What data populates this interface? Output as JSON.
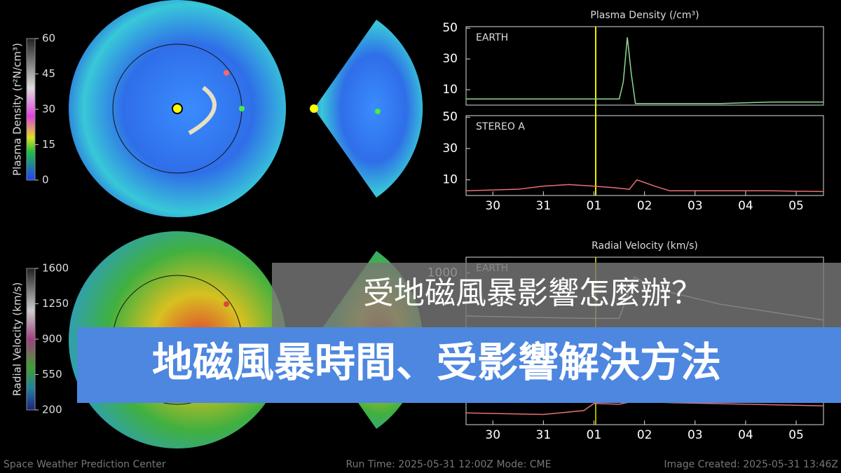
{
  "colorbars": [
    {
      "label": "Plasma Density (r²N/cm³)",
      "ticks": [
        60,
        45,
        30,
        15,
        0
      ]
    },
    {
      "label": "Radial Velocity (km/s)",
      "ticks": [
        1600,
        1250,
        900,
        550,
        200
      ]
    }
  ],
  "chart_data": [
    {
      "type": "line",
      "title": "Plasma Density (/cm³)",
      "x": [
        -0.53,
        0.5,
        1.5,
        2.5,
        2.58,
        2.66,
        2.74,
        2.82,
        3.5,
        4.5,
        5.5,
        6.54
      ],
      "series": [
        {
          "name": "EARTH",
          "color": "#8fd88f",
          "values": [
            4,
            4,
            4,
            4,
            15,
            44,
            20,
            1,
            1,
            1,
            2,
            2
          ]
        }
      ],
      "xlim": [
        -0.53,
        6.54
      ],
      "ylim": [
        0,
        51
      ],
      "yticks": [
        10,
        30,
        50
      ]
    },
    {
      "type": "line",
      "x": [
        -0.53,
        0.5,
        1.0,
        1.5,
        2.0,
        2.4,
        2.7,
        2.85,
        3.2,
        3.5,
        4.5,
        5.5,
        6.54
      ],
      "series": [
        {
          "name": "STEREO A",
          "color": "#e87070",
          "values": [
            3,
            4,
            6,
            7,
            6,
            5,
            4,
            10,
            6,
            3,
            3,
            3,
            2.5
          ]
        }
      ],
      "xlim": [
        -0.53,
        6.54
      ],
      "ylim": [
        0,
        51
      ],
      "yticks": [
        10,
        30,
        50
      ],
      "xticks": [
        {
          "value": 0,
          "label": "30"
        },
        {
          "value": 1,
          "label": "31"
        },
        {
          "value": 2,
          "label": "01"
        },
        {
          "value": 3,
          "label": "02"
        },
        {
          "value": 4,
          "label": "03"
        },
        {
          "value": 5,
          "label": "04"
        },
        {
          "value": 6,
          "label": "05"
        }
      ]
    },
    {
      "type": "line",
      "title": "Radial Velocity (km/s)",
      "x": [
        -0.53,
        1,
        2,
        2.5,
        2.8,
        3.2,
        4.5,
        6.54
      ],
      "series": [
        {
          "name": "EARTH",
          "color": "#8fd88f",
          "values": [
            450,
            430,
            420,
            420,
            950,
            800,
            600,
            400
          ]
        }
      ],
      "xlim": [
        -0.53,
        6.54
      ],
      "ylim": [
        200,
        1200
      ],
      "yticks": [
        1000
      ]
    },
    {
      "type": "line",
      "x": [
        -0.53,
        1,
        1.8,
        2.0,
        2.5,
        2.8,
        3.5,
        6.54
      ],
      "series": [
        {
          "name": "STEREO A",
          "color": "#e87070",
          "values": [
            350,
            330,
            380,
            470,
            460,
            500,
            480,
            440
          ]
        }
      ],
      "xlim": [
        -0.53,
        6.54
      ],
      "ylim": [
        200,
        1200
      ],
      "yticks": [
        600
      ],
      "xticks": [
        {
          "value": 0,
          "label": "30"
        },
        {
          "value": 1,
          "label": "31"
        },
        {
          "value": 2,
          "label": "01"
        },
        {
          "value": 3,
          "label": "02"
        },
        {
          "value": 4,
          "label": "03"
        },
        {
          "value": 5,
          "label": "04"
        },
        {
          "value": 6,
          "label": "05"
        }
      ]
    }
  ],
  "banner": {
    "subtitle": "受地磁風暴影響怎麼辦？",
    "title": "地磁風暴時間、受影響解決方法"
  },
  "footer": {
    "left": "Space Weather Prediction Center",
    "center": "Run Time: 2025-05-31 12:00Z  Mode: CME",
    "right": "Image Created: 2025-05-31 13:46Z"
  }
}
